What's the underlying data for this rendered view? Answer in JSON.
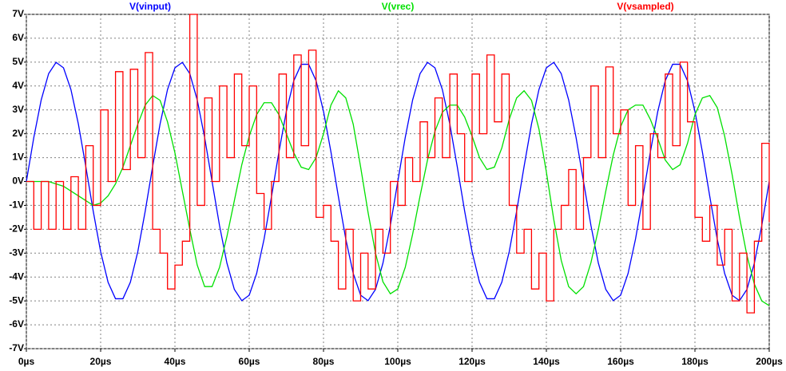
{
  "chart_data": {
    "type": "line",
    "x": [
      0,
      2,
      4,
      6,
      8,
      10,
      12,
      14,
      16,
      18,
      20,
      22,
      24,
      26,
      28,
      30,
      32,
      34,
      36,
      38,
      40,
      42,
      44,
      46,
      48,
      50,
      52,
      54,
      56,
      58,
      60,
      62,
      64,
      66,
      68,
      70,
      72,
      74,
      76,
      78,
      80,
      82,
      84,
      86,
      88,
      90,
      92,
      94,
      96,
      98,
      100,
      102,
      104,
      106,
      108,
      110,
      112,
      114,
      116,
      118,
      120,
      122,
      124,
      126,
      128,
      130,
      132,
      134,
      136,
      138,
      140,
      142,
      144,
      146,
      148,
      150,
      152,
      154,
      156,
      158,
      160,
      162,
      164,
      166,
      168,
      170,
      172,
      174,
      176,
      178,
      180,
      182,
      184,
      186,
      188,
      190,
      192,
      194,
      196,
      198,
      200
    ],
    "series": [
      {
        "name": "V(vinput)",
        "color": "#0000ff",
        "style": "line",
        "values": [
          0,
          1.84,
          3.42,
          4.52,
          4.99,
          4.76,
          3.85,
          2.41,
          0.63,
          -1.24,
          -2.94,
          -4.22,
          -4.91,
          -4.91,
          -4.22,
          -2.94,
          -1.24,
          0.63,
          2.41,
          3.85,
          4.76,
          4.99,
          4.52,
          3.42,
          1.84,
          0,
          -1.84,
          -3.42,
          -4.52,
          -4.99,
          -4.76,
          -3.85,
          -2.41,
          -0.63,
          1.24,
          2.94,
          4.22,
          4.91,
          4.91,
          4.22,
          2.94,
          1.24,
          -0.63,
          -2.41,
          -3.85,
          -4.76,
          -4.99,
          -4.52,
          -3.42,
          -1.84,
          0,
          1.84,
          3.42,
          4.52,
          4.99,
          4.76,
          3.85,
          2.41,
          0.63,
          -1.24,
          -2.94,
          -4.22,
          -4.91,
          -4.91,
          -4.22,
          -2.94,
          -1.24,
          0.63,
          2.41,
          3.85,
          4.76,
          4.99,
          4.52,
          3.42,
          1.84,
          0,
          -1.84,
          -3.42,
          -4.52,
          -4.99,
          -4.76,
          -3.85,
          -2.41,
          -0.63,
          1.24,
          2.94,
          4.22,
          4.91,
          4.91,
          4.22,
          2.94,
          1.24,
          -0.63,
          -2.41,
          -3.85,
          -4.76,
          -4.99,
          -4.52,
          -3.42,
          -1.84,
          0
        ]
      },
      {
        "name": "V(vrec)",
        "color": "#00e000",
        "style": "line",
        "values": [
          0,
          0,
          0,
          0,
          -0.1,
          -0.2,
          -0.4,
          -0.6,
          -0.8,
          -1.0,
          -0.9,
          -0.6,
          -0.1,
          0.6,
          1.5,
          2.4,
          3.2,
          3.6,
          3.4,
          2.5,
          1.2,
          -0.4,
          -2.0,
          -3.5,
          -4.4,
          -4.4,
          -3.6,
          -2.3,
          -0.8,
          0.7,
          1.9,
          2.8,
          3.3,
          3.3,
          2.8,
          2.0,
          1.2,
          0.6,
          0.5,
          1.0,
          2.0,
          3.2,
          3.8,
          3.5,
          2.4,
          0.6,
          -1.3,
          -3.0,
          -4.2,
          -4.7,
          -4.5,
          -3.6,
          -2.2,
          -0.6,
          0.9,
          2.1,
          2.9,
          3.2,
          3.2,
          2.7,
          1.9,
          1.0,
          0.5,
          0.6,
          1.4,
          2.6,
          3.5,
          3.8,
          3.4,
          2.2,
          0.4,
          -1.6,
          -3.3,
          -4.4,
          -4.7,
          -4.4,
          -3.4,
          -2.0,
          -0.4,
          1.1,
          2.3,
          3.0,
          3.2,
          3.2,
          2.6,
          1.8,
          0.9,
          0.5,
          0.7,
          1.6,
          2.8,
          3.5,
          3.6,
          3.1,
          1.9,
          0.3,
          -1.5,
          -3.1,
          -4.3,
          -5.0,
          -5.2
        ]
      },
      {
        "name": "V(vsampled)",
        "color": "#ff0000",
        "style": "step",
        "values": [
          0,
          -2,
          0,
          -2,
          0,
          -2,
          0.2,
          -2,
          1.5,
          -1,
          3,
          0,
          4.6,
          0.5,
          4.7,
          1,
          5.4,
          -2,
          -3,
          -4.5,
          -3.5,
          -2.5,
          7,
          -1,
          3.5,
          0,
          4,
          1,
          4.5,
          1.5,
          4,
          -0.5,
          -2,
          0,
          4.5,
          1,
          5.3,
          1.5,
          5.5,
          -1.5,
          -1,
          -2.5,
          -4.5,
          -2,
          -5,
          -3,
          -4.5,
          -2,
          -3,
          0,
          -1,
          1,
          0,
          2.5,
          1,
          3.5,
          1,
          4.5,
          2,
          0,
          4.5,
          2,
          5.3,
          2.5,
          4.5,
          -1,
          -3,
          -2,
          -4.5,
          -3,
          -5,
          -2,
          -1,
          0.5,
          -2,
          1,
          4,
          1,
          4.8,
          2,
          3,
          -1,
          1.5,
          -2,
          2,
          1,
          4.5,
          1.5,
          5,
          2.5,
          -1.5,
          -2.5,
          -1,
          -3.5,
          -2,
          -5,
          -3,
          -5.5,
          -2.5,
          1.6,
          -1.7
        ]
      }
    ],
    "xlim": [
      0,
      200
    ],
    "xticks": [
      {
        "value": 0,
        "label": "0µs"
      },
      {
        "value": 20,
        "label": "20µs"
      },
      {
        "value": 40,
        "label": "40µs"
      },
      {
        "value": 60,
        "label": "60µs"
      },
      {
        "value": 80,
        "label": "80µs"
      },
      {
        "value": 100,
        "label": "100µs"
      },
      {
        "value": 120,
        "label": "120µs"
      },
      {
        "value": 140,
        "label": "140µs"
      },
      {
        "value": 160,
        "label": "160µs"
      },
      {
        "value": 180,
        "label": "180µs"
      },
      {
        "value": 200,
        "label": "200µs"
      }
    ],
    "ylim": [
      -7,
      7
    ],
    "yticks": [
      {
        "value": -7,
        "label": "-7V"
      },
      {
        "value": -6,
        "label": "-6V"
      },
      {
        "value": -5,
        "label": "-5V"
      },
      {
        "value": -4,
        "label": "-4V"
      },
      {
        "value": -3,
        "label": "-3V"
      },
      {
        "value": -2,
        "label": "-2V"
      },
      {
        "value": -1,
        "label": "-1V"
      },
      {
        "value": 0,
        "label": "0V"
      },
      {
        "value": 1,
        "label": "1V"
      },
      {
        "value": 2,
        "label": "2V"
      },
      {
        "value": 3,
        "label": "3V"
      },
      {
        "value": 4,
        "label": "4V"
      },
      {
        "value": 5,
        "label": "5V"
      },
      {
        "value": 6,
        "label": "6V"
      },
      {
        "value": 7,
        "label": "7V"
      }
    ],
    "grid": true
  }
}
